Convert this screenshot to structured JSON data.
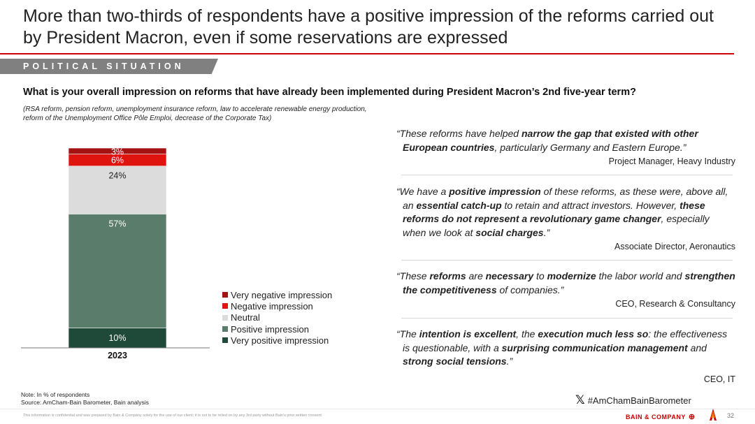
{
  "header": {
    "title": "More than two-thirds of respondents have a positive impression of the reforms carried out by President Macron, even if some reservations are expressed",
    "section_label": "POLITICAL SITUATION"
  },
  "question": "What is your overall impression on reforms that have already been implemented during President Macron’s 2nd five-year term?",
  "subnote": "(RSA reform, pension reform, unemployment insurance reform, law to accelerate renewable energy production, reform of the Unemployment Office Pôle Emploi, decrease of the Corporate Tax)",
  "chart_data": {
    "type": "bar",
    "stacked": true,
    "categories": [
      "2023"
    ],
    "series": [
      {
        "name": "Very positive impression",
        "values": [
          10
        ],
        "label": "10%",
        "color": "#1f4a3a"
      },
      {
        "name": "Positive impression",
        "values": [
          57
        ],
        "label": "57%",
        "color": "#5a7d6b"
      },
      {
        "name": "Neutral",
        "values": [
          24
        ],
        "label": "24%",
        "color": "#dcdcdc"
      },
      {
        "name": "Negative impression",
        "values": [
          6
        ],
        "label": "6%",
        "color": "#e0140f"
      },
      {
        "name": "Very negative impression",
        "values": [
          3
        ],
        "label": "3%",
        "color": "#a51212"
      }
    ],
    "ylim": [
      0,
      100
    ],
    "legend_position": "right",
    "grid": false
  },
  "legend": [
    {
      "label": "Very negative impression",
      "color": "#a51212"
    },
    {
      "label": "Negative impression",
      "color": "#e0140f"
    },
    {
      "label": "Neutral",
      "color": "#dcdcdc"
    },
    {
      "label": "Positive impression",
      "color": "#5a7d6b"
    },
    {
      "label": "Very positive impression",
      "color": "#1f4a3a"
    }
  ],
  "quotes": [
    {
      "open": "“These reforms have helped ",
      "b1": "narrow the gap that existed with other European countries",
      "t1": ", particularly Germany and Eastern Europe.”",
      "author": "Project Manager, Heavy Industry"
    },
    {
      "t0": "“We have a ",
      "b1": "positive impression",
      "t1": " of these reforms, as these were, above all, an ",
      "b2": "essential catch-up",
      "t2": " to retain and attract investors. However, ",
      "b3": "these reforms do not represent a revolutionary game changer",
      "t3": ", especially when we look at ",
      "b4": "social charges",
      "t4": ".”",
      "author": "Associate Director, Aeronautics"
    },
    {
      "t0": "“These ",
      "b1": "reforms",
      "t1": " are ",
      "b2": "necessary",
      "t2": " to ",
      "b3": "modernize",
      "t3": " the labor world and ",
      "b4": "strengthen the competitiveness",
      "t4": " of companies.”",
      "author": "CEO, Research & Consultancy"
    },
    {
      "t0": "“The ",
      "b1": "intention is excellent",
      "t1": ", the ",
      "b2": "execution much less so",
      "t2": ": the effectiveness is questionable, with a ",
      "b3": "surprising communication management",
      "t3": " and ",
      "b4": "strong social tensions",
      "t4": ".”",
      "author": "CEO, IT"
    }
  ],
  "footer": {
    "note": "Note: In % of respondents",
    "source": "Source: AmCham-Bain Barometer, Bain analysis",
    "hashtag": "#AmChamBainBarometer",
    "disclaimer": "This information is confidential and was prepared by Bain & Company solely for the use of our client; it is not to be relied on by any 3rd party without Bain's prior written consent",
    "brand": "BAIN & COMPANY",
    "page_number": "32"
  }
}
